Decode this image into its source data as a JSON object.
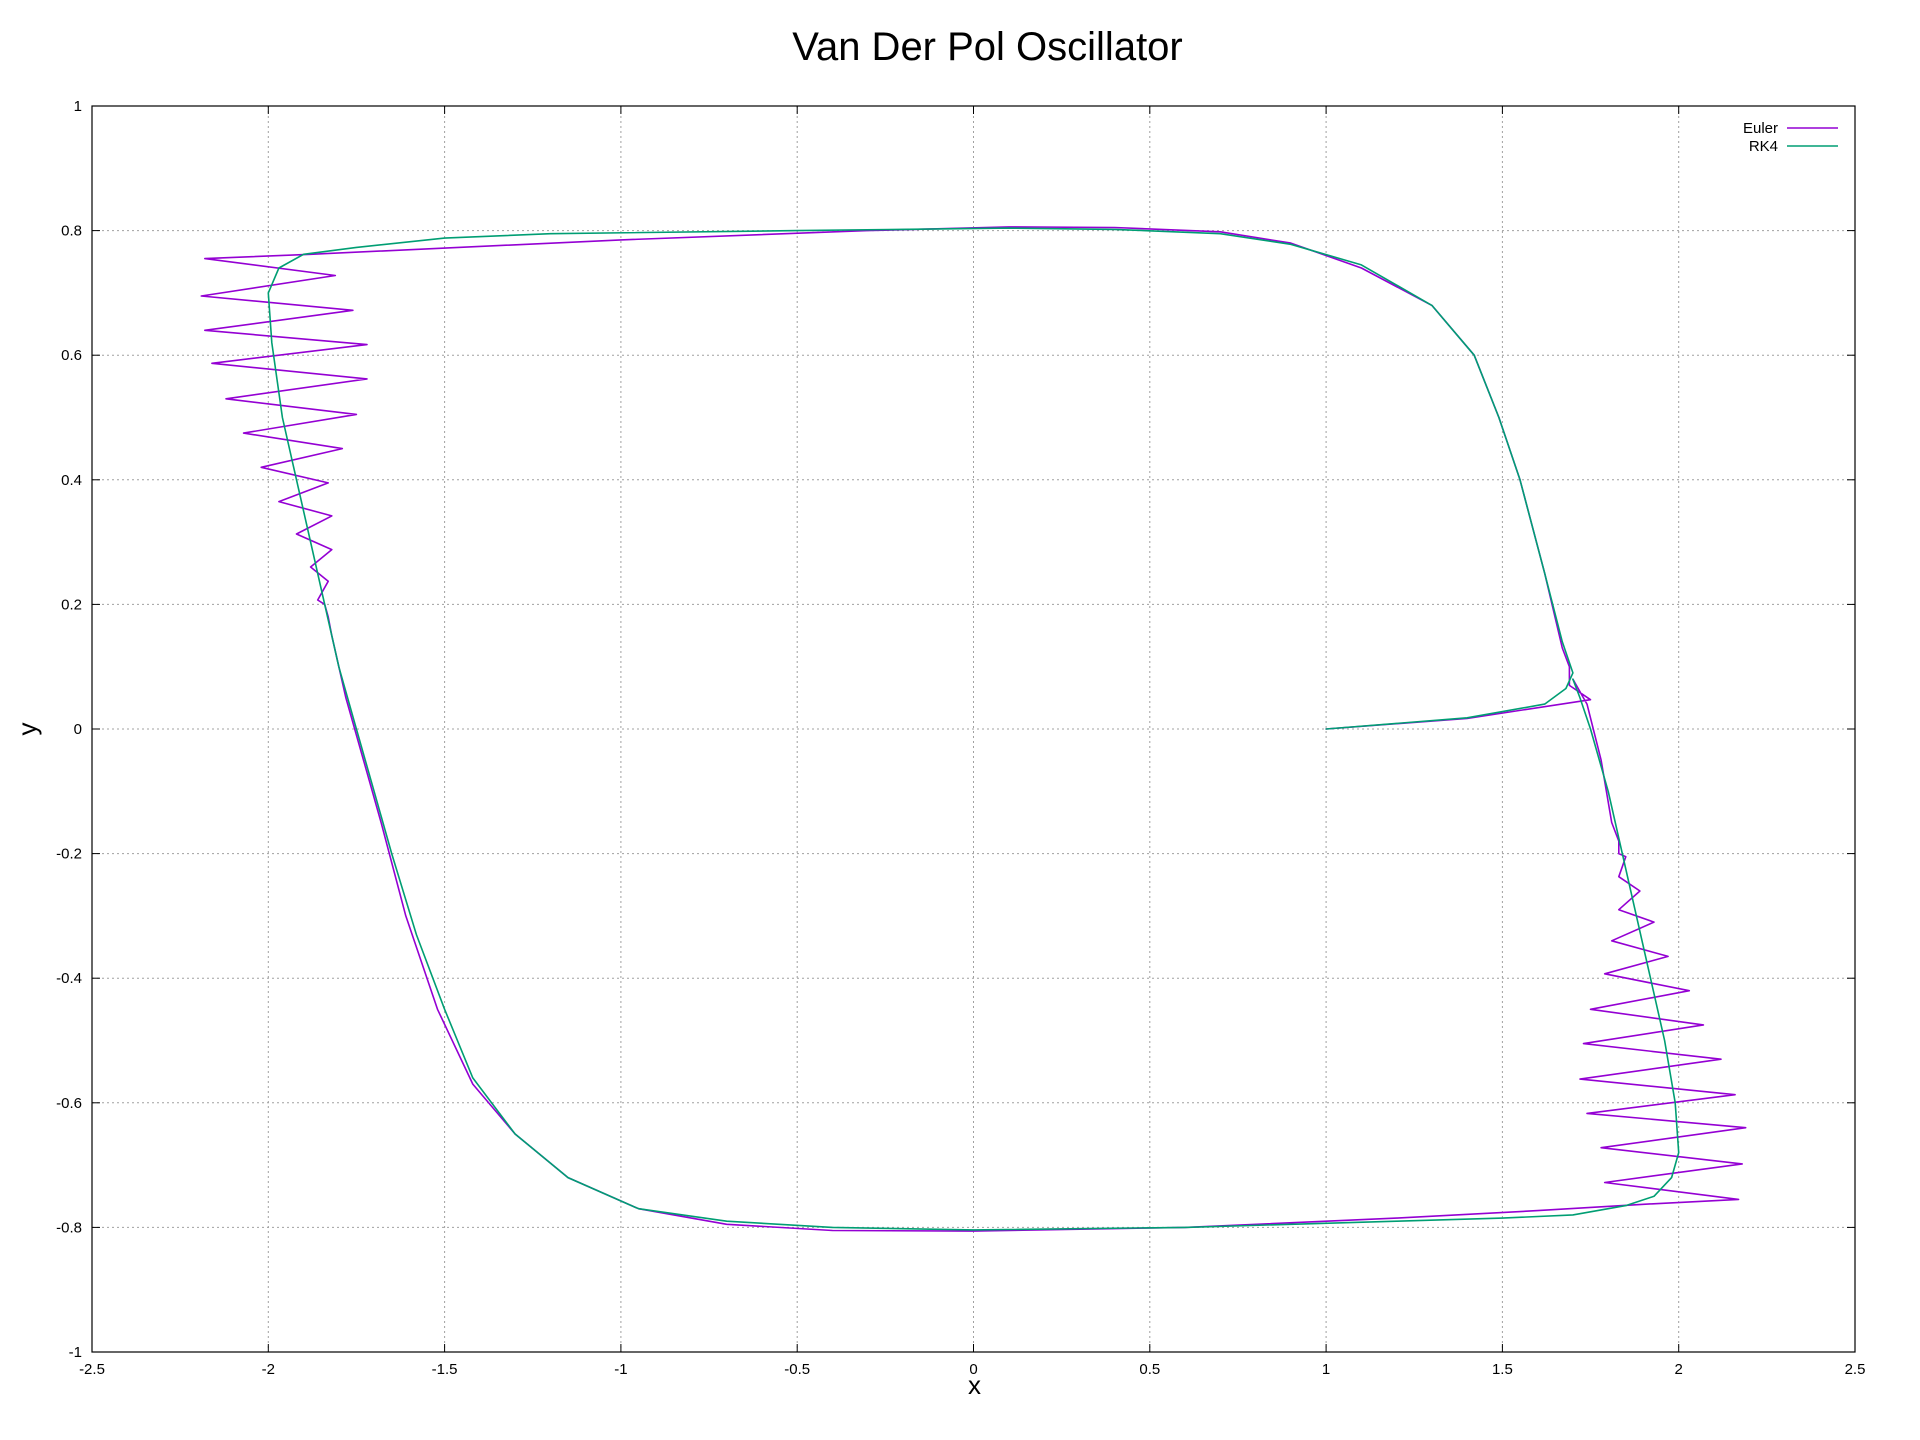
{
  "chart_data": {
    "type": "line",
    "title": "Van Der Pol Oscillator",
    "xlabel": "x",
    "ylabel": "y",
    "xlim": [
      -2.5,
      2.5
    ],
    "ylim": [
      -1,
      1
    ],
    "xticks": [
      "-2.5",
      "-2",
      "-1.5",
      "-1",
      "-0.5",
      "0",
      "0.5",
      "1",
      "1.5",
      "2",
      "2.5"
    ],
    "yticks": [
      "-1",
      "-0.8",
      "-0.6",
      "-0.4",
      "-0.2",
      "0",
      "0.2",
      "0.4",
      "0.6",
      "0.8",
      "1"
    ],
    "grid": true,
    "legend_position": "top-right",
    "series": [
      {
        "name": "Euler",
        "color": "#9400d3",
        "points": [
          [
            1.0,
            0.0
          ],
          [
            1.4,
            0.017
          ],
          [
            1.75,
            0.047
          ],
          [
            1.69,
            0.07
          ],
          [
            1.69,
            0.1
          ],
          [
            1.67,
            0.13
          ],
          [
            1.62,
            0.25
          ],
          [
            1.55,
            0.4
          ],
          [
            1.49,
            0.5
          ],
          [
            1.42,
            0.6
          ],
          [
            1.3,
            0.68
          ],
          [
            1.1,
            0.74
          ],
          [
            0.9,
            0.78
          ],
          [
            0.7,
            0.798
          ],
          [
            0.4,
            0.805
          ],
          [
            0.1,
            0.806
          ],
          [
            -0.3,
            0.8
          ],
          [
            -1.0,
            0.785
          ],
          [
            -1.88,
            0.762
          ],
          [
            -2.18,
            0.755
          ],
          [
            -1.81,
            0.728
          ],
          [
            -2.19,
            0.695
          ],
          [
            -1.76,
            0.672
          ],
          [
            -2.18,
            0.64
          ],
          [
            -1.72,
            0.617
          ],
          [
            -2.16,
            0.587
          ],
          [
            -1.72,
            0.562
          ],
          [
            -2.12,
            0.53
          ],
          [
            -1.75,
            0.505
          ],
          [
            -2.07,
            0.475
          ],
          [
            -1.79,
            0.45
          ],
          [
            -2.02,
            0.42
          ],
          [
            -1.83,
            0.395
          ],
          [
            -1.97,
            0.365
          ],
          [
            -1.82,
            0.342
          ],
          [
            -1.92,
            0.313
          ],
          [
            -1.82,
            0.288
          ],
          [
            -1.88,
            0.26
          ],
          [
            -1.83,
            0.237
          ],
          [
            -1.86,
            0.207
          ],
          [
            -1.84,
            0.2
          ],
          [
            -1.83,
            0.18
          ],
          [
            -1.82,
            0.15
          ],
          [
            -1.78,
            0.05
          ],
          [
            -1.73,
            -0.05
          ],
          [
            -1.68,
            -0.15
          ],
          [
            -1.61,
            -0.3
          ],
          [
            -1.52,
            -0.45
          ],
          [
            -1.42,
            -0.57
          ],
          [
            -1.3,
            -0.65
          ],
          [
            -1.15,
            -0.72
          ],
          [
            -0.95,
            -0.77
          ],
          [
            -0.7,
            -0.795
          ],
          [
            -0.4,
            -0.805
          ],
          [
            0.0,
            -0.806
          ],
          [
            0.6,
            -0.8
          ],
          [
            1.2,
            -0.785
          ],
          [
            1.6,
            -0.773
          ],
          [
            1.9,
            -0.763
          ],
          [
            2.17,
            -0.755
          ],
          [
            1.79,
            -0.728
          ],
          [
            2.18,
            -0.698
          ],
          [
            1.78,
            -0.672
          ],
          [
            2.19,
            -0.64
          ],
          [
            1.74,
            -0.617
          ],
          [
            2.16,
            -0.587
          ],
          [
            1.72,
            -0.562
          ],
          [
            2.12,
            -0.53
          ],
          [
            1.73,
            -0.505
          ],
          [
            2.07,
            -0.475
          ],
          [
            1.75,
            -0.45
          ],
          [
            2.03,
            -0.42
          ],
          [
            1.79,
            -0.393
          ],
          [
            1.97,
            -0.365
          ],
          [
            1.81,
            -0.34
          ],
          [
            1.93,
            -0.31
          ],
          [
            1.83,
            -0.29
          ],
          [
            1.89,
            -0.26
          ],
          [
            1.83,
            -0.237
          ],
          [
            1.85,
            -0.205
          ],
          [
            1.83,
            -0.2
          ],
          [
            1.83,
            -0.18
          ],
          [
            1.81,
            -0.15
          ],
          [
            1.78,
            -0.05
          ],
          [
            1.74,
            0.04
          ],
          [
            1.7,
            0.08
          ]
        ]
      },
      {
        "name": "RK4",
        "color": "#009e73",
        "points": [
          [
            1.0,
            0.0
          ],
          [
            1.4,
            0.018
          ],
          [
            1.62,
            0.04
          ],
          [
            1.68,
            0.065
          ],
          [
            1.7,
            0.09
          ],
          [
            1.67,
            0.14
          ],
          [
            1.62,
            0.25
          ],
          [
            1.55,
            0.4
          ],
          [
            1.49,
            0.5
          ],
          [
            1.42,
            0.6
          ],
          [
            1.3,
            0.68
          ],
          [
            1.1,
            0.745
          ],
          [
            0.9,
            0.778
          ],
          [
            0.7,
            0.795
          ],
          [
            0.4,
            0.802
          ],
          [
            0.1,
            0.804
          ],
          [
            -0.5,
            0.8
          ],
          [
            -1.2,
            0.795
          ],
          [
            -1.5,
            0.788
          ],
          [
            -1.75,
            0.773
          ],
          [
            -1.9,
            0.762
          ],
          [
            -1.97,
            0.74
          ],
          [
            -2.0,
            0.7
          ],
          [
            -1.99,
            0.62
          ],
          [
            -1.96,
            0.5
          ],
          [
            -1.92,
            0.4
          ],
          [
            -1.88,
            0.3
          ],
          [
            -1.84,
            0.2
          ],
          [
            -1.8,
            0.1
          ],
          [
            -1.75,
            0.0
          ],
          [
            -1.7,
            -0.1
          ],
          [
            -1.65,
            -0.2
          ],
          [
            -1.58,
            -0.33
          ],
          [
            -1.5,
            -0.45
          ],
          [
            -1.42,
            -0.56
          ],
          [
            -1.3,
            -0.65
          ],
          [
            -1.15,
            -0.72
          ],
          [
            -0.95,
            -0.77
          ],
          [
            -0.7,
            -0.79
          ],
          [
            -0.4,
            -0.8
          ],
          [
            0.0,
            -0.804
          ],
          [
            0.6,
            -0.8
          ],
          [
            1.2,
            -0.79
          ],
          [
            1.5,
            -0.785
          ],
          [
            1.7,
            -0.78
          ],
          [
            1.85,
            -0.765
          ],
          [
            1.93,
            -0.75
          ],
          [
            1.98,
            -0.72
          ],
          [
            2.0,
            -0.68
          ],
          [
            1.99,
            -0.6
          ],
          [
            1.96,
            -0.5
          ],
          [
            1.92,
            -0.4
          ],
          [
            1.88,
            -0.3
          ],
          [
            1.84,
            -0.2
          ],
          [
            1.8,
            -0.1
          ],
          [
            1.75,
            0.0
          ],
          [
            1.72,
            0.05
          ],
          [
            1.7,
            0.08
          ]
        ]
      }
    ]
  }
}
